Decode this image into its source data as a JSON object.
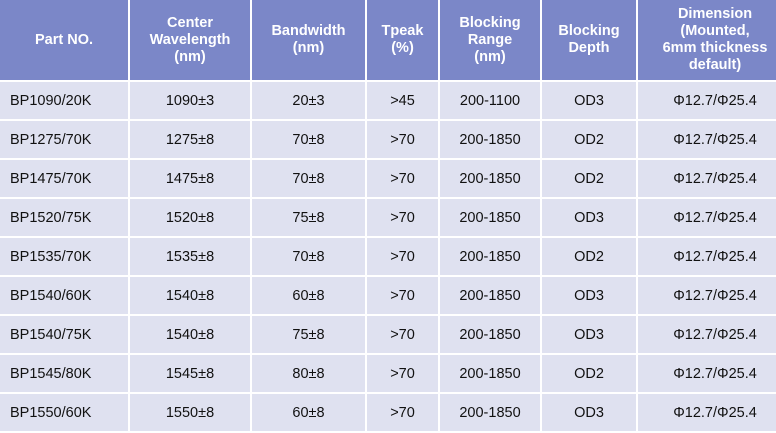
{
  "table": {
    "headers": [
      [
        "Part NO."
      ],
      [
        "Center",
        "Wavelength",
        "(nm)"
      ],
      [
        "Bandwidth",
        "(nm)"
      ],
      [
        "Tpeak",
        "(%)"
      ],
      [
        "Blocking",
        "Range",
        "(nm)"
      ],
      [
        "Blocking",
        "Depth"
      ],
      [
        "Dimension",
        "(Mounted,",
        "6mm thickness",
        "default)"
      ]
    ],
    "rows": [
      [
        "BP1090/20K",
        "1090±3",
        "20±3",
        ">45",
        "200-1100",
        "OD3",
        "Φ12.7/Φ25.4"
      ],
      [
        "BP1275/70K",
        "1275±8",
        "70±8",
        ">70",
        "200-1850",
        "OD2",
        "Φ12.7/Φ25.4"
      ],
      [
        "BP1475/70K",
        "1475±8",
        "70±8",
        ">70",
        "200-1850",
        "OD2",
        "Φ12.7/Φ25.4"
      ],
      [
        "BP1520/75K",
        "1520±8",
        "75±8",
        ">70",
        "200-1850",
        "OD3",
        "Φ12.7/Φ25.4"
      ],
      [
        "BP1535/70K",
        "1535±8",
        "70±8",
        ">70",
        "200-1850",
        "OD2",
        "Φ12.7/Φ25.4"
      ],
      [
        "BP1540/60K",
        "1540±8",
        "60±8",
        ">70",
        "200-1850",
        "OD3",
        "Φ12.7/Φ25.4"
      ],
      [
        "BP1540/75K",
        "1540±8",
        "75±8",
        ">70",
        "200-1850",
        "OD3",
        "Φ12.7/Φ25.4"
      ],
      [
        "BP1545/80K",
        "1545±8",
        "80±8",
        ">70",
        "200-1850",
        "OD2",
        "Φ12.7/Φ25.4"
      ],
      [
        "BP1550/60K",
        "1550±8",
        "60±8",
        ">70",
        "200-1850",
        "OD3",
        "Φ12.7/Φ25.4"
      ]
    ]
  },
  "colors": {
    "header_bg": "#7b87c8",
    "row_bg": "#dfe1f0",
    "header_text": "#ffffff"
  }
}
